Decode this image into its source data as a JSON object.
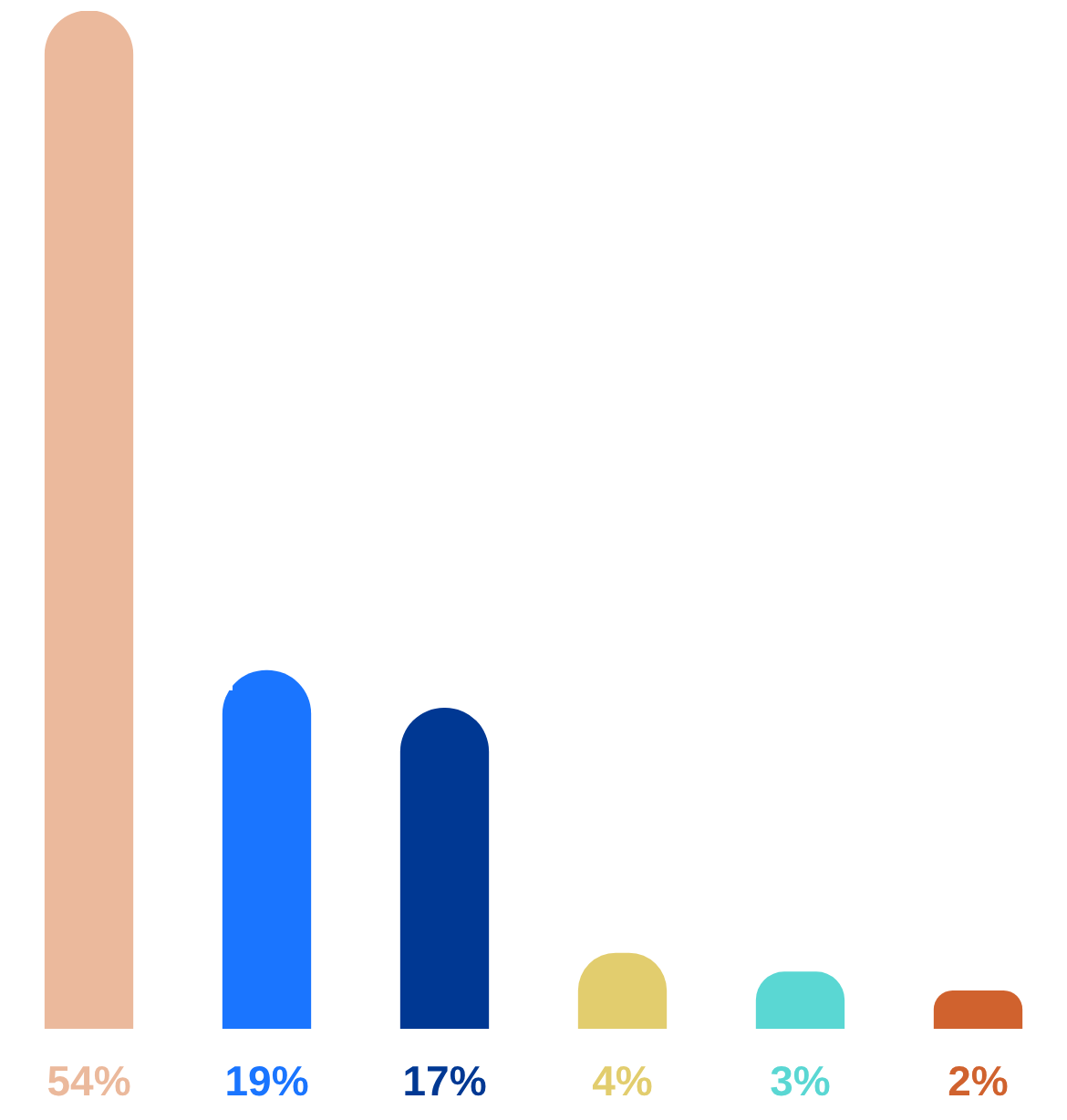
{
  "chart_data": {
    "type": "bar",
    "categories": [
      null,
      null,
      null,
      null,
      null,
      null
    ],
    "values": [
      54,
      19,
      17,
      4,
      3,
      2
    ],
    "value_labels": [
      "54%",
      "19%",
      "17%",
      "4%",
      "3%",
      "2%"
    ],
    "colors": [
      "#ebb99c",
      "#1a75ff",
      "#003893",
      "#e2cd6e",
      "#5ad7d3",
      "#d0622e"
    ],
    "legend": false
  }
}
